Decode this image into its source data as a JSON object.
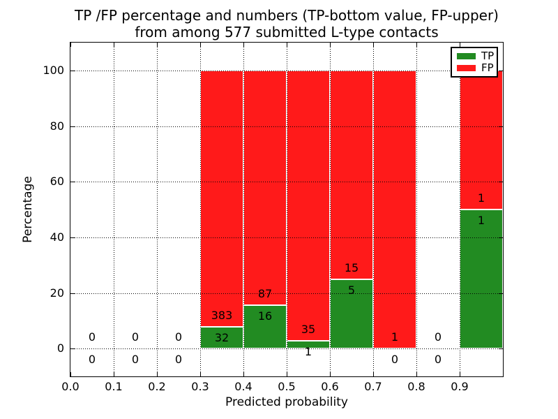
{
  "figure": {
    "title_line1": "TP /FP percentage and numbers (TP-bottom value, FP-upper)",
    "title_line2": "from among 577 submitted L-type contacts"
  },
  "chart_data": {
    "type": "bar",
    "stacked": true,
    "normalization": "each bin scaled to 100%",
    "title": "TP /FP percentage and numbers (TP-bottom value, FP-upper) from among 577 submitted L-type contacts",
    "xlabel": "Predicted probability",
    "ylabel": "Percentage",
    "xlim": [
      0.0,
      1.0
    ],
    "ylim": [
      -10,
      110
    ],
    "bar_width": 0.1,
    "grid": true,
    "grid_style": "dotted",
    "x_tick_labels": [
      "0.0",
      "0.1",
      "0.2",
      "0.3",
      "0.4",
      "0.5",
      "0.6",
      "0.7",
      "0.8",
      "0.9"
    ],
    "y_ticks": [
      0,
      20,
      40,
      60,
      80,
      100
    ],
    "legend": {
      "position": "upper right",
      "entries": [
        {
          "label": "TP",
          "color": "#228b22"
        },
        {
          "label": "FP",
          "color": "#ff1a1a"
        }
      ]
    },
    "bins": [
      {
        "range": [
          0.0,
          0.1
        ],
        "tp": 0,
        "fp": 0
      },
      {
        "range": [
          0.1,
          0.2
        ],
        "tp": 0,
        "fp": 0
      },
      {
        "range": [
          0.2,
          0.3
        ],
        "tp": 0,
        "fp": 0
      },
      {
        "range": [
          0.3,
          0.4
        ],
        "tp": 32,
        "fp": 383
      },
      {
        "range": [
          0.4,
          0.5
        ],
        "tp": 16,
        "fp": 87
      },
      {
        "range": [
          0.5,
          0.6
        ],
        "tp": 1,
        "fp": 35
      },
      {
        "range": [
          0.6,
          0.7
        ],
        "tp": 5,
        "fp": 15
      },
      {
        "range": [
          0.7,
          0.8
        ],
        "tp": 0,
        "fp": 1
      },
      {
        "range": [
          0.8,
          0.9
        ],
        "tp": 0,
        "fp": 0
      },
      {
        "range": [
          0.9,
          1.0
        ],
        "tp": 1,
        "fp": 1
      }
    ]
  },
  "colors": {
    "tp": "#228b22",
    "fp": "#ff1a1a",
    "grid": "#000000",
    "spine": "#000000",
    "bar_edge": "#ffffff",
    "background": "#ffffff"
  }
}
